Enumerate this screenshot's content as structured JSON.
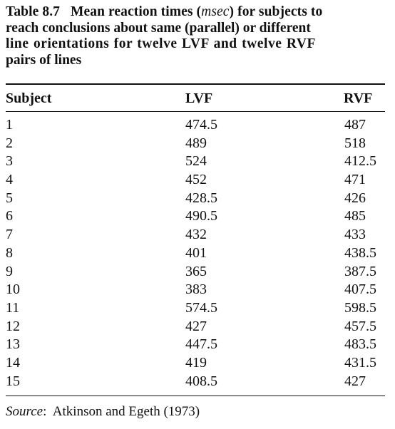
{
  "caption": {
    "label": "Table 8.7",
    "line1_text": "Mean reaction times (",
    "line1_unit": "msec",
    "line1_tail": ") for subjects to",
    "line2": "reach conclusions about same (parallel) or different",
    "line3": "line orientations for twelve LVF and twelve RVF",
    "line4": "pairs of lines"
  },
  "table": {
    "headers": {
      "subject": "Subject",
      "lvf": "LVF",
      "rvf": "RVF"
    },
    "rows": [
      {
        "subject": "1",
        "lvf": "474.5",
        "rvf": "487"
      },
      {
        "subject": "2",
        "lvf": "489",
        "rvf": "518"
      },
      {
        "subject": "3",
        "lvf": "524",
        "rvf": "412.5"
      },
      {
        "subject": "4",
        "lvf": "452",
        "rvf": "471"
      },
      {
        "subject": "5",
        "lvf": "428.5",
        "rvf": "426"
      },
      {
        "subject": "6",
        "lvf": "490.5",
        "rvf": "485"
      },
      {
        "subject": "7",
        "lvf": "432",
        "rvf": "433"
      },
      {
        "subject": "8",
        "lvf": "401",
        "rvf": "438.5"
      },
      {
        "subject": "9",
        "lvf": "365",
        "rvf": "387.5"
      },
      {
        "subject": "10",
        "lvf": "383",
        "rvf": "407.5"
      },
      {
        "subject": "11",
        "lvf": "574.5",
        "rvf": "598.5"
      },
      {
        "subject": "12",
        "lvf": "427",
        "rvf": "457.5"
      },
      {
        "subject": "13",
        "lvf": "447.5",
        "rvf": "483.5"
      },
      {
        "subject": "14",
        "lvf": "419",
        "rvf": "431.5"
      },
      {
        "subject": "15",
        "lvf": "408.5",
        "rvf": "427"
      }
    ]
  },
  "source": {
    "label": "Source",
    "separator": ":",
    "text": "Atkinson and Egeth (1973)"
  }
}
